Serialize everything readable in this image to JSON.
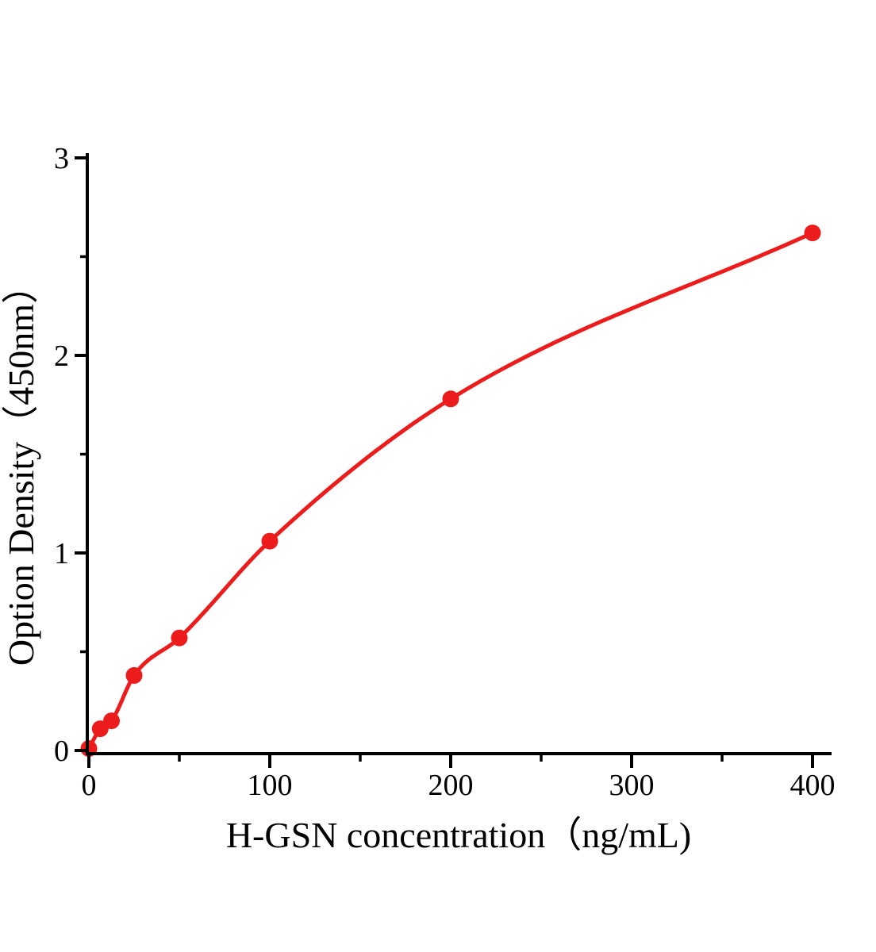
{
  "figure": {
    "background": "#ffffff"
  },
  "chart_data": {
    "type": "scatter",
    "subtype": "standard-curve-with-fitted-line",
    "title": "",
    "xlabel": "H-GSN concentration（ng/mL)",
    "ylabel": "Option Density（450nm）",
    "x": [
      0,
      6.25,
      12.5,
      25,
      50,
      100,
      200,
      400
    ],
    "y": [
      0.01,
      0.11,
      0.15,
      0.38,
      0.57,
      1.06,
      1.78,
      2.62
    ],
    "xlim": [
      0,
      410
    ],
    "ylim": [
      0,
      3.05
    ],
    "x_major_ticks": [
      0,
      100,
      200,
      300,
      400
    ],
    "x_minor_ticks": [
      50,
      150,
      250,
      350
    ],
    "y_major_ticks": [
      0,
      1,
      2,
      3
    ],
    "y_minor_ticks": [
      0.5,
      1.5,
      2.5
    ],
    "series_color": "#ed1c1c",
    "axis_color": "#000000",
    "marker": "circle",
    "grid": false,
    "legend": null
  }
}
